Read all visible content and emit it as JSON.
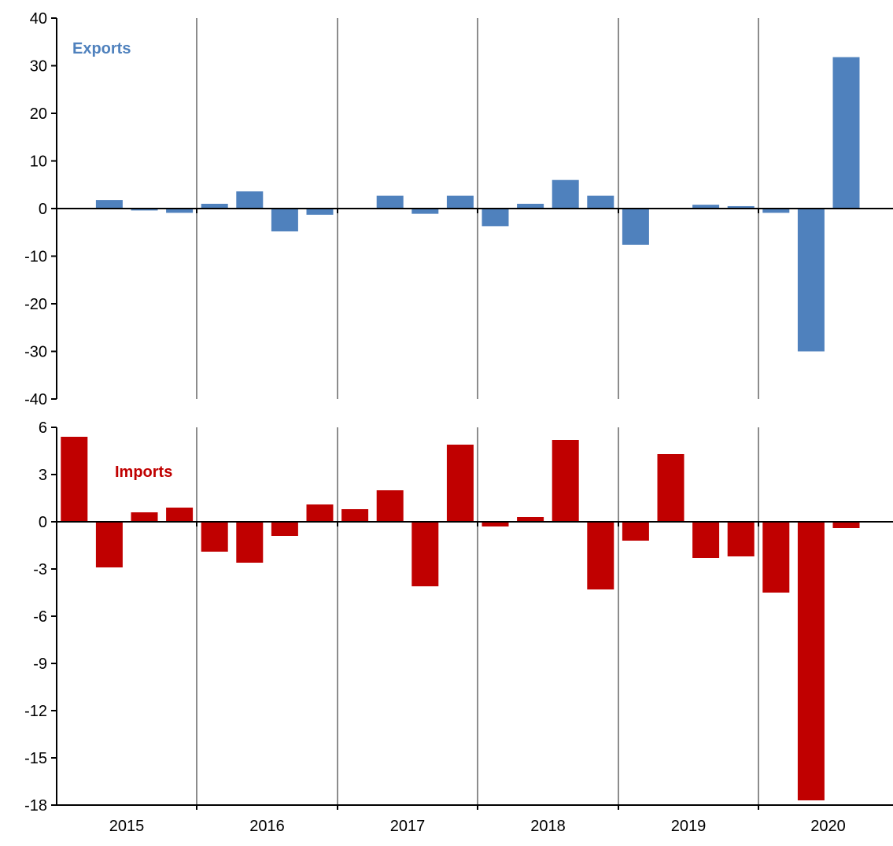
{
  "chart_data": [
    {
      "type": "bar",
      "title": "Exports",
      "categories": [
        "2015Q1",
        "2015Q2",
        "2015Q3",
        "2015Q4",
        "2016Q1",
        "2016Q2",
        "2016Q3",
        "2016Q4",
        "2017Q1",
        "2017Q2",
        "2017Q3",
        "2017Q4",
        "2018Q1",
        "2018Q2",
        "2018Q3",
        "2018Q4",
        "2019Q1",
        "2019Q2",
        "2019Q3",
        "2019Q4",
        "2020Q1",
        "2020Q2",
        "2020Q3"
      ],
      "values": [
        0,
        1.8,
        -0.4,
        -0.9,
        1.0,
        3.6,
        -4.8,
        -1.3,
        0,
        2.7,
        -1.1,
        2.7,
        -3.7,
        1.0,
        6.0,
        2.7,
        -7.6,
        0,
        0.8,
        0.5,
        -0.9,
        -30.0,
        31.8
      ],
      "ylim": [
        -40,
        40
      ],
      "yticks": [
        "40",
        "30",
        "20",
        "10",
        "0",
        "-10",
        "-20",
        "-30",
        "-40"
      ],
      "color": "#4f81bd"
    },
    {
      "type": "bar",
      "title": "Imports",
      "categories": [
        "2015Q1",
        "2015Q2",
        "2015Q3",
        "2015Q4",
        "2016Q1",
        "2016Q2",
        "2016Q3",
        "2016Q4",
        "2017Q1",
        "2017Q2",
        "2017Q3",
        "2017Q4",
        "2018Q1",
        "2018Q2",
        "2018Q3",
        "2018Q4",
        "2019Q1",
        "2019Q2",
        "2019Q3",
        "2019Q4",
        "2020Q1",
        "2020Q2",
        "2020Q3"
      ],
      "values": [
        5.4,
        -2.9,
        0.6,
        0.9,
        -1.9,
        -2.6,
        -0.9,
        1.1,
        0.8,
        2.0,
        -4.1,
        4.9,
        -0.3,
        0.3,
        5.2,
        -4.3,
        -1.2,
        4.3,
        -2.3,
        -2.2,
        -4.5,
        -17.7,
        -0.4
      ],
      "ylim": [
        -18,
        6
      ],
      "yticks": [
        "6",
        "3",
        "0",
        "-3",
        "-6",
        "-9",
        "-12",
        "-15",
        "-18"
      ],
      "color": "#c00000"
    }
  ],
  "x_year_labels": [
    "2015",
    "2016",
    "2017",
    "2018",
    "2019",
    "2020"
  ]
}
